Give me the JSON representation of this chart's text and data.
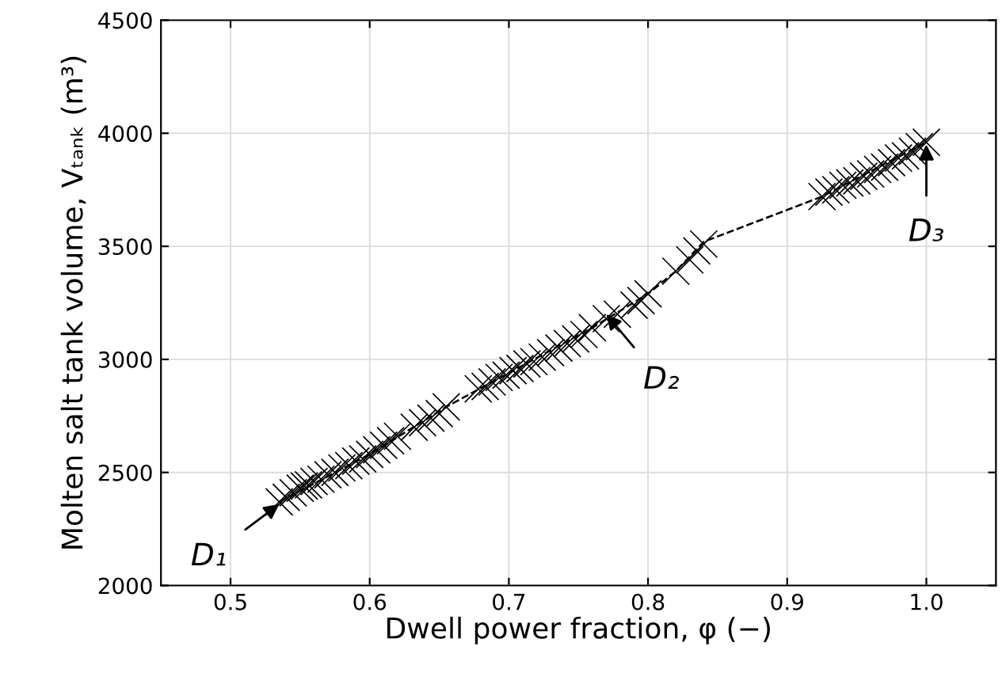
{
  "chart_data": {
    "type": "scatter",
    "xlabel": "Dwell power fraction, φ (−)",
    "ylabel": "Molten salt tank volume, Vₜₐₙₖ (m³)",
    "xlim": [
      0.45,
      1.05
    ],
    "ylim": [
      2000,
      4500
    ],
    "xticks": [
      0.5,
      0.6,
      0.7,
      0.8,
      0.9,
      {
        "value": 1.0,
        "label": "1.0"
      }
    ],
    "yticks": [
      2000,
      2500,
      3000,
      3500,
      4000,
      4500
    ],
    "grid": true,
    "series": [
      {
        "color": "#000000",
        "marker": "cross",
        "x": [
          0.535,
          0.54,
          0.545,
          0.55,
          0.553,
          0.556,
          0.56,
          0.565,
          0.57,
          0.575,
          0.58,
          0.585,
          0.59,
          0.595,
          0.6,
          0.605,
          0.61,
          0.615,
          0.62,
          0.632,
          0.638,
          0.644,
          0.65,
          0.655,
          0.678,
          0.683,
          0.688,
          0.693,
          0.698,
          0.703,
          0.708,
          0.713,
          0.718,
          0.724,
          0.73,
          0.736,
          0.742,
          0.748,
          0.754,
          0.76,
          0.77,
          0.778,
          0.79,
          0.795,
          0.8,
          0.82,
          0.83,
          0.835,
          0.84,
          0.925,
          0.93,
          0.935,
          0.94,
          0.945,
          0.95,
          0.955,
          0.96,
          0.965,
          0.97,
          0.975,
          0.98,
          0.985,
          0.99,
          0.995,
          1.0
        ],
        "values": [
          2370,
          2390,
          2410,
          2430,
          2440,
          2445,
          2460,
          2470,
          2490,
          2500,
          2520,
          2530,
          2550,
          2560,
          2580,
          2600,
          2620,
          2640,
          2660,
          2700,
          2720,
          2740,
          2760,
          2790,
          2870,
          2880,
          2900,
          2920,
          2930,
          2950,
          2960,
          2980,
          2990,
          3010,
          3030,
          3050,
          3070,
          3090,
          3110,
          3140,
          3180,
          3200,
          3240,
          3260,
          3290,
          3390,
          3440,
          3480,
          3510,
          3720,
          3740,
          3750,
          3770,
          3780,
          3790,
          3810,
          3820,
          3840,
          3850,
          3870,
          3890,
          3900,
          3920,
          3940,
          3960
        ]
      },
      {
        "type": "line",
        "color": "#000000",
        "line_style": "dashed",
        "marker": "none",
        "x": [
          0.535,
          0.6,
          0.655,
          0.7,
          0.76,
          0.8,
          0.82,
          0.84,
          0.925,
          1.0
        ],
        "values": [
          2370,
          2580,
          2790,
          2940,
          3140,
          3290,
          3390,
          3520,
          3720,
          3960
        ]
      }
    ],
    "annotations": [
      {
        "text": "D₁",
        "x": 0.535,
        "y": 2360
      },
      {
        "text": "D₂",
        "x": 0.77,
        "y": 3200
      },
      {
        "text": "D₃",
        "x": 1.0,
        "y": 3950
      }
    ]
  }
}
